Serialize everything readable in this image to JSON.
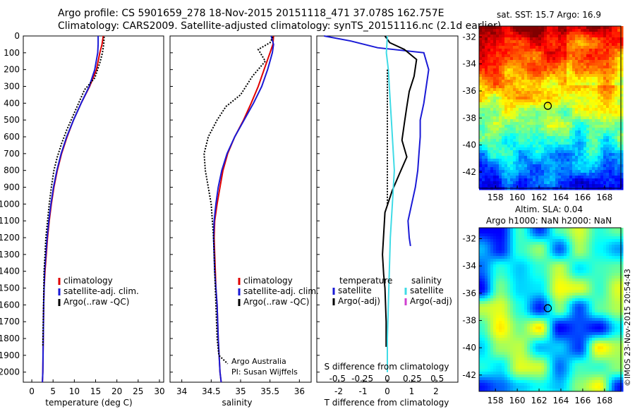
{
  "title_line1": "Argo profile: CS 5901659_278 18-Nov-2015 20151118_471 37.078S 162.757E",
  "title_line2": "Climatology: CARS2009. Satellite-adjusted climatology: synTS_20151116.nc (2.1d earlier)",
  "colors": {
    "climatology": "#e00000",
    "satellite": "#1a1ad6",
    "argo": "#000000",
    "satellite_salinity": "#3fdbe6",
    "argo_salinity": "#d040d0",
    "map_circle": "#000000"
  },
  "chart_data": [
    {
      "type": "line",
      "id": "temperature",
      "xlabel": "temperature (deg C)",
      "ylabel": "",
      "xlim": [
        -2,
        31
      ],
      "ylim": [
        2060,
        0
      ],
      "xticks": [
        0,
        5,
        10,
        15,
        20,
        25,
        30
      ],
      "yticks": [
        0,
        100,
        200,
        300,
        400,
        500,
        600,
        700,
        800,
        900,
        1000,
        1100,
        1200,
        1300,
        1400,
        1500,
        1600,
        1700,
        1800,
        1900,
        2000
      ],
      "legend": [
        "climatology",
        "satellite-adj. clim.",
        "Argo(..raw -QC)"
      ],
      "legend_position": "lower-center",
      "series": [
        {
          "name": "climatology",
          "style": "solid",
          "color": "#e00000",
          "x": [
            16.8,
            16.5,
            16.0,
            15.2,
            13.6,
            11.6,
            9.8,
            8.3,
            7.0,
            6.0,
            5.2,
            4.6,
            4.1,
            3.7,
            3.4,
            3.1,
            2.9,
            2.8,
            2.7,
            2.6,
            2.5
          ],
          "y": [
            0,
            50,
            100,
            200,
            300,
            400,
            500,
            600,
            700,
            800,
            900,
            1000,
            1100,
            1200,
            1300,
            1400,
            1500,
            1600,
            1800,
            2000,
            2060
          ]
        },
        {
          "name": "satellite-adj. clim.",
          "style": "solid",
          "color": "#1a1ad6",
          "x": [
            15.6,
            15.6,
            15.5,
            14.8,
            13.5,
            11.6,
            9.8,
            8.2,
            6.9,
            5.9,
            5.1,
            4.5,
            4.0,
            3.6,
            3.3,
            3.0,
            2.9,
            2.8,
            2.7,
            2.6,
            2.5
          ],
          "y": [
            0,
            50,
            100,
            200,
            300,
            400,
            500,
            600,
            700,
            800,
            900,
            1000,
            1100,
            1200,
            1300,
            1400,
            1500,
            1600,
            1800,
            2000,
            2060
          ]
        },
        {
          "name": "Argo(..raw -QC)",
          "style": "dotted",
          "color": "#000000",
          "x": [
            17.0,
            16.9,
            16.6,
            16.0,
            14.8,
            12.4,
            11.0,
            9.6,
            8.2,
            7.0,
            6.0,
            5.2,
            4.6,
            4.1,
            3.7,
            3.3,
            3.1,
            2.9,
            2.8,
            2.7,
            2.6
          ],
          "y": [
            5,
            50,
            100,
            160,
            250,
            320,
            400,
            480,
            560,
            640,
            720,
            800,
            900,
            1000,
            1100,
            1200,
            1300,
            1400,
            1550,
            1700,
            1850
          ]
        }
      ]
    },
    {
      "type": "line",
      "id": "salinity",
      "xlabel": "salinity",
      "ylabel": "",
      "xlim": [
        33.8,
        36.2
      ],
      "ylim": [
        2060,
        0
      ],
      "xticks": [
        34,
        34.5,
        35,
        35.5,
        36
      ],
      "legend": [
        "climatology",
        "satellite-adj. clim.",
        "Argo(..raw -QC)"
      ],
      "legend_position": "lower-center",
      "annotations": [
        "Argo Australia",
        "PI: Susan Wijffels"
      ],
      "series": [
        {
          "name": "climatology",
          "style": "solid",
          "color": "#e00000",
          "x": [
            35.56,
            35.55,
            35.5,
            35.4,
            35.3,
            35.18,
            35.05,
            34.9,
            34.78,
            34.7,
            34.65,
            34.6,
            34.56,
            34.55,
            34.56,
            34.57,
            34.58,
            34.6,
            34.62,
            34.65,
            34.67
          ],
          "y": [
            0,
            50,
            100,
            200,
            300,
            400,
            500,
            600,
            700,
            800,
            900,
            1000,
            1100,
            1200,
            1300,
            1400,
            1500,
            1600,
            1800,
            2000,
            2060
          ]
        },
        {
          "name": "satellite-adj. clim.",
          "style": "solid",
          "color": "#1a1ad6",
          "x": [
            35.52,
            35.56,
            35.54,
            35.46,
            35.36,
            35.22,
            35.06,
            34.9,
            34.77,
            34.68,
            34.62,
            34.58,
            34.55,
            34.54,
            34.55,
            34.56,
            34.58,
            34.6,
            34.62,
            34.65,
            34.67
          ],
          "y": [
            0,
            50,
            100,
            200,
            300,
            400,
            500,
            600,
            700,
            800,
            900,
            1000,
            1100,
            1200,
            1300,
            1400,
            1500,
            1600,
            1800,
            2000,
            2060
          ]
        },
        {
          "name": "Argo(..raw -QC)",
          "style": "dotted",
          "color": "#000000",
          "x": [
            35.55,
            35.5,
            35.3,
            35.42,
            35.2,
            35.0,
            34.75,
            34.6,
            34.45,
            34.38,
            34.4,
            34.45,
            34.5,
            34.54,
            34.56,
            34.58,
            34.6,
            34.63,
            34.78
          ],
          "y": [
            5,
            40,
            80,
            150,
            240,
            350,
            420,
            500,
            600,
            700,
            800,
            900,
            1000,
            1200,
            1400,
            1600,
            1800,
            1900,
            1950
          ]
        }
      ]
    },
    {
      "type": "line",
      "id": "difference",
      "xlabel": "T difference from climatology",
      "xlabel_top": "S difference from climatology",
      "xlim": [
        -2.9,
        2.9
      ],
      "ylim": [
        2060,
        0
      ],
      "xticks_bottom": [
        -2,
        -1,
        0,
        1,
        2
      ],
      "xticks_top": [
        "-0.5",
        "-0.25",
        "0",
        "0.25",
        "0.5"
      ],
      "legend": [
        "temperature",
        "satellite",
        "Argo(-adj)",
        "salinity",
        "satellite",
        "Argo(-adj)"
      ],
      "legend_position": "lower-center",
      "series": [
        {
          "name": "temperature satellite",
          "style": "solid",
          "color": "#1a1ad6",
          "x": [
            -2.6,
            -1.5,
            -0.4,
            1.5,
            1.7,
            1.5,
            1.35,
            1.35,
            1.3,
            1.25,
            1.15,
            1.0,
            0.85,
            0.9,
            0.95
          ],
          "y": [
            0,
            30,
            70,
            100,
            200,
            400,
            500,
            600,
            700,
            800,
            900,
            1000,
            1100,
            1200,
            1250
          ]
        },
        {
          "name": "temperature Argo(-adj)",
          "style": "solid",
          "color": "#000000",
          "x": [
            -0.1,
            0.1,
            0.7,
            1.2,
            1.1,
            0.9,
            0.8,
            0.7,
            0.6,
            0.8,
            0.5,
            0.2,
            -0.1,
            -0.2,
            -0.15,
            -0.1,
            -0.05,
            -0.05
          ],
          "y": [
            0,
            40,
            80,
            140,
            240,
            330,
            420,
            520,
            620,
            720,
            820,
            920,
            1050,
            1300,
            1420,
            1500,
            1700,
            1850
          ]
        },
        {
          "name": "salinity satellite",
          "style": "solid",
          "color": "#3fdbe6",
          "x": [
            0.0,
            -0.01,
            0.01,
            0.02,
            0.03,
            0.04,
            0.05,
            0.06,
            0.07,
            0.06,
            0.05,
            0.03,
            0.02,
            0.01,
            0.0,
            0.0
          ],
          "y": [
            0,
            100,
            200,
            300,
            400,
            500,
            600,
            700,
            800,
            900,
            1000,
            1200,
            1400,
            1600,
            1800,
            2000
          ]
        },
        {
          "name": "salinity Argo(-adj)",
          "style": "dotted",
          "color": "#000000",
          "x": [
            0.0,
            0.0,
            0.0,
            0.0,
            0.0
          ],
          "y": [
            200,
            400,
            600,
            800,
            1000
          ]
        }
      ]
    }
  ],
  "maps": {
    "sst": {
      "title": "sat. SST: 15.7 Argo: 16.9",
      "yticks": [
        "-32",
        "-34",
        "-36",
        "-38",
        "-40",
        "-42"
      ],
      "xticks": [
        "158",
        "160",
        "162",
        "164",
        "166",
        "168"
      ],
      "lon_range": [
        156.5,
        169.5
      ],
      "lat_range": [
        -43.2,
        -31.2
      ],
      "marker": {
        "lon": 162.8,
        "lat": -37.1
      }
    },
    "sla": {
      "title1": "Altim. SLA: 0.04",
      "title2": "Argo h1000: NaN h2000: NaN",
      "yticks": [
        "-32",
        "-34",
        "-36",
        "-38",
        "-40",
        "-42"
      ],
      "xticks": [
        "158",
        "160",
        "162",
        "164",
        "166",
        "168"
      ],
      "lon_range": [
        156.5,
        169.5
      ],
      "lat_range": [
        -43.2,
        -31.2
      ],
      "marker": {
        "lon": 162.8,
        "lat": -37.1
      }
    }
  },
  "credit": "©IMOS 23-Nov-2015 20:54:43"
}
